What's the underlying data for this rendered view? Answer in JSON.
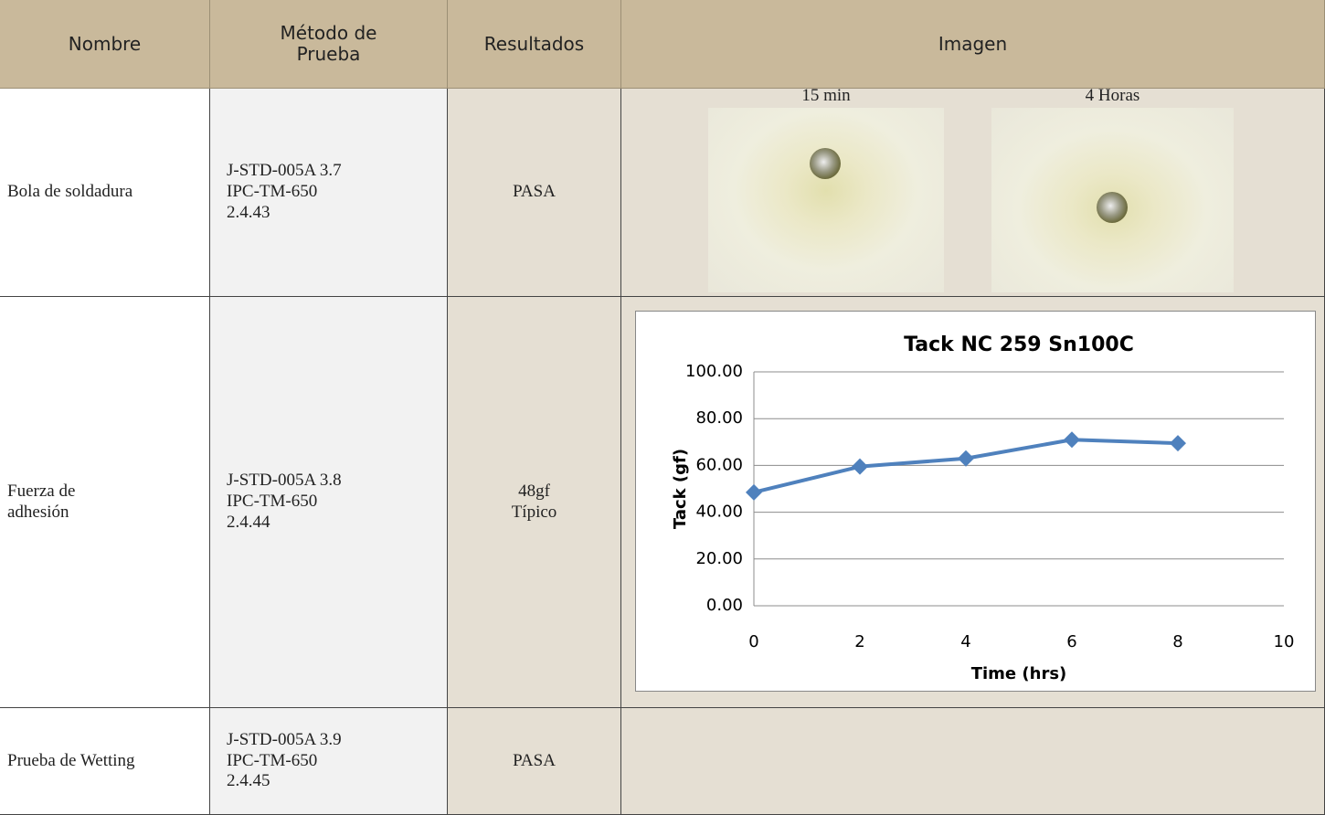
{
  "table": {
    "headers": [
      [
        "Nombre"
      ],
      [
        "Método de",
        "Prueba"
      ],
      [
        "Resultados"
      ],
      [
        "Imagen"
      ]
    ],
    "rows": [
      {
        "name": [
          "Bola de soldadura"
        ],
        "method": [
          "J-STD-005A 3.7",
          "IPC-TM-650",
          "2.4.43"
        ],
        "result": [
          "PASA"
        ],
        "image_captions": [
          "15 min",
          "4 Horas"
        ]
      },
      {
        "name": [
          "Fuerza de",
          "adhesión"
        ],
        "method": [
          "J-STD-005A 3.8",
          "IPC-TM-650",
          "2.4.44"
        ],
        "result": [
          "48gf",
          "Típico"
        ]
      },
      {
        "name": [
          "Prueba de Wetting"
        ],
        "method": [
          "J-STD-005A 3.9",
          "IPC-TM-650",
          "2.4.45"
        ],
        "result": [
          "PASA"
        ]
      }
    ]
  },
  "chart_data": {
    "type": "line",
    "title": "Tack NC 259 Sn100C",
    "x_label": "Time (hrs)",
    "y_label": "Tack  (gf)",
    "x": [
      0,
      2,
      4,
      6,
      8
    ],
    "values": [
      48.5,
      59.5,
      63,
      71,
      69.5
    ],
    "color": "#4f81bd",
    "xlim": [
      0,
      10
    ],
    "xticks": [
      0,
      2,
      4,
      6,
      8,
      10
    ],
    "ylim": [
      0,
      100
    ],
    "yticks": [
      {
        "value": 0,
        "label": "0.00"
      },
      {
        "value": 20,
        "label": "20.00"
      },
      {
        "value": 40,
        "label": "40.00"
      },
      {
        "value": 60,
        "label": "60.00"
      },
      {
        "value": 80,
        "label": "80.00"
      },
      {
        "value": 100,
        "label": "100.00"
      }
    ],
    "grid": true
  }
}
